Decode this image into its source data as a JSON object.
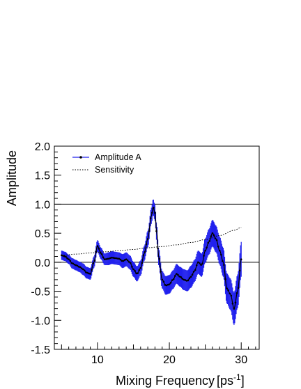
{
  "chart_data": {
    "type": "line",
    "xlabel": "Mixing Frequency",
    "xunit_base": "[ps",
    "xunit_sup": "-1",
    "xunit_close": "]",
    "ylabel": "Amplitude",
    "xlim": [
      4,
      32.5
    ],
    "ylim": [
      -1.5,
      2.0
    ],
    "x_ticks": [
      10,
      20,
      30
    ],
    "y_ticks": [
      -1.5,
      -1.0,
      -0.5,
      0.0,
      0.5,
      1.0,
      1.5,
      2.0
    ],
    "y_tick_labels": [
      "-1.5",
      "-1.0",
      "-0.5",
      "0.0",
      "0.5",
      "1.0",
      "1.5",
      "2.0"
    ],
    "reference_lines": [
      0.0,
      1.0
    ],
    "legend_placement": "top-left",
    "colors": {
      "amplitude": "#2020ee",
      "points": "#000000",
      "sensitivity": "#000000"
    },
    "series": [
      {
        "name": "Amplitude A",
        "x": [
          5.0,
          5.5,
          6.0,
          6.5,
          7.0,
          7.5,
          8.0,
          8.5,
          9.0,
          9.5,
          10.0,
          10.5,
          11.0,
          11.5,
          12.0,
          12.5,
          13.0,
          13.5,
          14.0,
          14.5,
          15.0,
          15.5,
          16.0,
          16.5,
          17.0,
          17.5,
          17.75,
          18.0,
          18.25,
          18.5,
          19.0,
          19.5,
          20.0,
          20.5,
          21.0,
          21.5,
          22.0,
          22.5,
          23.0,
          23.5,
          24.0,
          24.5,
          25.0,
          25.5,
          26.0,
          26.5,
          27.0,
          27.5,
          28.0,
          28.5,
          29.0,
          29.5,
          30.0
        ],
        "values": [
          0.12,
          0.1,
          0.05,
          -0.02,
          -0.05,
          -0.08,
          -0.12,
          -0.18,
          -0.2,
          0.0,
          0.28,
          0.15,
          0.05,
          0.06,
          0.08,
          0.07,
          0.06,
          0.02,
          0.05,
          0.0,
          -0.12,
          -0.2,
          -0.1,
          0.15,
          0.4,
          0.8,
          0.95,
          0.85,
          0.5,
          0.1,
          -0.3,
          -0.4,
          -0.38,
          -0.3,
          -0.2,
          -0.25,
          -0.3,
          -0.32,
          -0.25,
          -0.15,
          0.0,
          -0.05,
          0.2,
          0.35,
          0.5,
          0.4,
          0.2,
          0.0,
          -0.45,
          -0.55,
          -0.8,
          -0.5,
          0.05
        ],
        "errors": [
          0.08,
          0.08,
          0.08,
          0.09,
          0.09,
          0.09,
          0.1,
          0.1,
          0.1,
          0.1,
          0.1,
          0.1,
          0.1,
          0.11,
          0.11,
          0.11,
          0.11,
          0.12,
          0.12,
          0.12,
          0.13,
          0.13,
          0.13,
          0.13,
          0.14,
          0.14,
          0.14,
          0.14,
          0.15,
          0.15,
          0.15,
          0.16,
          0.16,
          0.16,
          0.17,
          0.17,
          0.18,
          0.18,
          0.19,
          0.19,
          0.2,
          0.2,
          0.21,
          0.22,
          0.23,
          0.23,
          0.24,
          0.25,
          0.26,
          0.27,
          0.28,
          0.29,
          0.3
        ]
      },
      {
        "name": "Sensitivity",
        "x": [
          5.0,
          7.0,
          9.0,
          11.0,
          13.0,
          15.0,
          17.0,
          19.0,
          21.0,
          23.0,
          25.0,
          27.0,
          29.0,
          30.0
        ],
        "values": [
          0.12,
          0.14,
          0.16,
          0.18,
          0.2,
          0.22,
          0.25,
          0.27,
          0.3,
          0.34,
          0.39,
          0.46,
          0.55,
          0.6
        ]
      }
    ]
  }
}
